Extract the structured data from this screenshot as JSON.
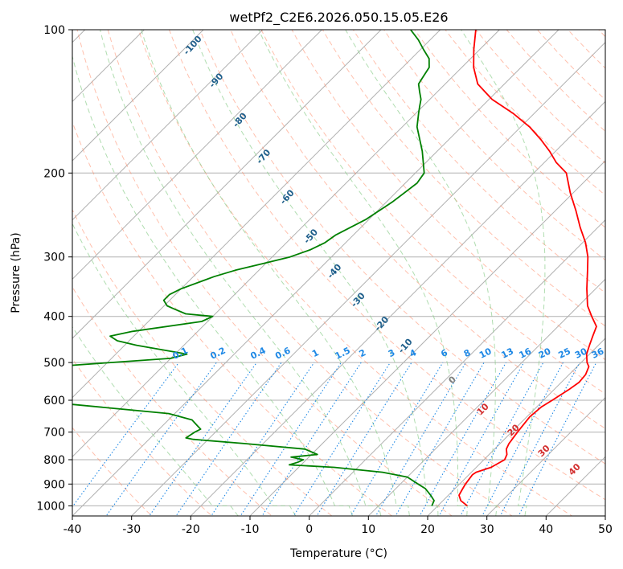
{
  "chart_data": {
    "type": "skew-t",
    "title": "wetPf2_C2E6.2026.050.15.05.E26",
    "xlabel": "Temperature (°C)",
    "ylabel": "Pressure (hPa)",
    "xlim": [
      -40,
      50
    ],
    "ylim": [
      1050,
      100
    ],
    "x_ticks": [
      -40,
      -30,
      -20,
      -10,
      0,
      10,
      20,
      30,
      40,
      50
    ],
    "y_ticks": [
      1000,
      900,
      800,
      700,
      600,
      500,
      400,
      300,
      200,
      100
    ],
    "colors": {
      "temperature": "#ff0000",
      "dewpoint": "#008000",
      "isotherm": "#b0b0b0",
      "dry_adiabat": "#ff8c69",
      "moist_adiabat": "#8fce8f",
      "mixing_ratio": "#1e88e5",
      "moist_label": "#1f5f8b",
      "dry_label": "#d32f2f",
      "freezing_label": "#808080"
    },
    "series": [
      {
        "name": "Temperature",
        "points": [
          [
            1000,
            25.0
          ],
          [
            975,
            23.0
          ],
          [
            950,
            21.8
          ],
          [
            920,
            21.3
          ],
          [
            900,
            21.0
          ],
          [
            860,
            20.6
          ],
          [
            850,
            20.8
          ],
          [
            830,
            22.5
          ],
          [
            800,
            23.5
          ],
          [
            780,
            23.0
          ],
          [
            760,
            22.0
          ],
          [
            740,
            21.5
          ],
          [
            700,
            21.0
          ],
          [
            650,
            20.5
          ],
          [
            620,
            20.8
          ],
          [
            600,
            21.5
          ],
          [
            570,
            22.5
          ],
          [
            550,
            23.0
          ],
          [
            530,
            22.8
          ],
          [
            510,
            22.0
          ],
          [
            500,
            21.0
          ],
          [
            480,
            19.5
          ],
          [
            460,
            18.5
          ],
          [
            440,
            17.5
          ],
          [
            420,
            16.5
          ],
          [
            400,
            14.0
          ],
          [
            380,
            11.5
          ],
          [
            350,
            8.5
          ],
          [
            320,
            5.5
          ],
          [
            300,
            3.3
          ],
          [
            280,
            0.5
          ],
          [
            260,
            -3.0
          ],
          [
            240,
            -6.5
          ],
          [
            220,
            -10.5
          ],
          [
            200,
            -14.5
          ],
          [
            190,
            -18.0
          ],
          [
            180,
            -21.0
          ],
          [
            170,
            -24.5
          ],
          [
            160,
            -28.5
          ],
          [
            150,
            -33.5
          ],
          [
            140,
            -39.5
          ],
          [
            130,
            -44.5
          ],
          [
            120,
            -48.0
          ],
          [
            110,
            -51.0
          ],
          [
            100,
            -54.0
          ]
        ]
      },
      {
        "name": "Dewpoint",
        "points": [
          [
            1000,
            19.0
          ],
          [
            975,
            18.5
          ],
          [
            950,
            17.0
          ],
          [
            920,
            15.0
          ],
          [
            900,
            13.0
          ],
          [
            870,
            10.0
          ],
          [
            850,
            5.0
          ],
          [
            830,
            -4.0
          ],
          [
            820,
            -12.0
          ],
          [
            810,
            -11.0
          ],
          [
            800,
            -10.5
          ],
          [
            790,
            -13.0
          ],
          [
            780,
            -9.0
          ],
          [
            760,
            -12.0
          ],
          [
            740,
            -23.0
          ],
          [
            725,
            -32.5
          ],
          [
            720,
            -34.0
          ],
          [
            700,
            -33.5
          ],
          [
            690,
            -33.0
          ],
          [
            680,
            -34.0
          ],
          [
            660,
            -36.0
          ],
          [
            640,
            -41.0
          ],
          [
            600,
            -67.0
          ],
          [
            580,
            -67.5
          ],
          [
            540,
            -67.5
          ],
          [
            520,
            -67.0
          ],
          [
            510,
            -68.5
          ],
          [
            490,
            -50.0
          ],
          [
            480,
            -48.0
          ],
          [
            460,
            -58.0
          ],
          [
            450,
            -62.0
          ],
          [
            440,
            -64.0
          ],
          [
            430,
            -61.0
          ],
          [
            410,
            -51.0
          ],
          [
            400,
            -50.0
          ],
          [
            395,
            -55.0
          ],
          [
            385,
            -58.0
          ],
          [
            380,
            -59.5
          ],
          [
            370,
            -61.0
          ],
          [
            360,
            -61.0
          ],
          [
            350,
            -60.0
          ],
          [
            330,
            -56.5
          ],
          [
            320,
            -54.0
          ],
          [
            310,
            -50.5
          ],
          [
            300,
            -47.0
          ],
          [
            290,
            -44.8
          ],
          [
            280,
            -43.5
          ],
          [
            270,
            -43.0
          ],
          [
            250,
            -40.5
          ],
          [
            230,
            -39.0
          ],
          [
            210,
            -38.0
          ],
          [
            200,
            -38.5
          ],
          [
            180,
            -42.5
          ],
          [
            160,
            -47.5
          ],
          [
            150,
            -49.5
          ],
          [
            145,
            -50.5
          ],
          [
            140,
            -51.5
          ],
          [
            135,
            -53.0
          ],
          [
            130,
            -54.5
          ],
          [
            125,
            -55.0
          ],
          [
            120,
            -55.5
          ],
          [
            115,
            -57.0
          ],
          [
            110,
            -59.5
          ],
          [
            105,
            -62.0
          ],
          [
            100,
            -65.0
          ]
        ]
      }
    ],
    "mixing_ratio_lines_gkg": [
      0.1,
      0.2,
      0.4,
      0.6,
      1,
      1.5,
      2,
      3,
      4,
      6,
      8,
      10,
      13,
      16,
      20,
      25,
      30,
      36
    ],
    "mixing_ratio_labels": [
      "0.1",
      "0.2",
      "0.4",
      "0.6",
      "1",
      "1.5",
      "2",
      "3",
      "4",
      "6",
      "8",
      "10",
      "13",
      "16",
      "20",
      "25",
      "30",
      "36"
    ],
    "moist_adiabat_labels": [
      "-100",
      "-90",
      "-80",
      "-70",
      "-60",
      "-50",
      "-40",
      "-30",
      "-20",
      "-10"
    ],
    "dry_adiabat_labels": [
      "0",
      "10",
      "20",
      "30",
      "40"
    ]
  }
}
